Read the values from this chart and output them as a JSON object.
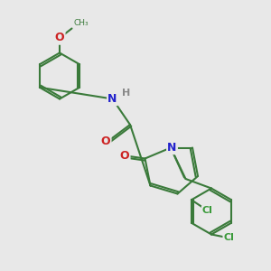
{
  "background_color": "#e8e8e8",
  "bond_color": "#3a7a3a",
  "atom_colors": {
    "N": "#2222cc",
    "O": "#cc2222",
    "Cl": "#3a9a3a",
    "H": "#888888",
    "C_label": "#3a7a3a"
  },
  "font_size": 9,
  "bond_width": 1.5
}
